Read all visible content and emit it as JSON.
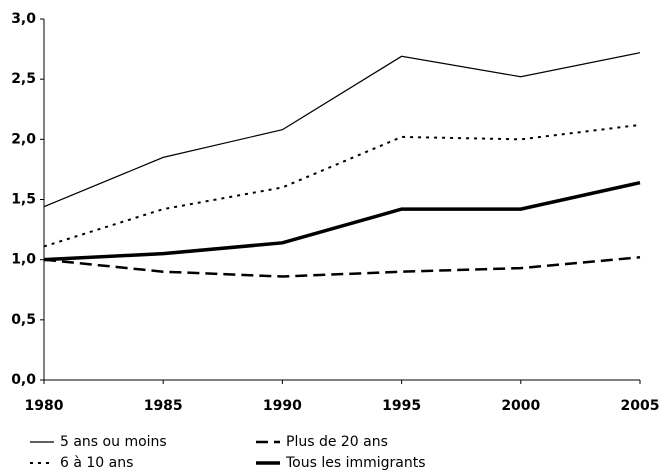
{
  "chart_data": {
    "type": "line",
    "x": [
      1980,
      1985,
      1990,
      1995,
      2000,
      2005
    ],
    "xlim": [
      1980,
      2005
    ],
    "xticks": [
      1980,
      1985,
      1990,
      1995,
      2000,
      2005
    ],
    "ylim": [
      0,
      3
    ],
    "yticks": [
      {
        "value": 0,
        "label": "0,0"
      },
      {
        "value": 0.5,
        "label": "0,5"
      },
      {
        "value": 1,
        "label": "1,0"
      },
      {
        "value": 1.5,
        "label": "1,5"
      },
      {
        "value": 2,
        "label": "2,0"
      },
      {
        "value": 2.5,
        "label": "2,5"
      },
      {
        "value": 3,
        "label": "3,0"
      }
    ],
    "grid": false,
    "legend": "bottom",
    "series": [
      {
        "name": "5 ans ou moins",
        "color": "#000000",
        "style": "solid",
        "width": 1.2,
        "values": [
          1.44,
          1.85,
          2.08,
          2.69,
          2.52,
          2.72
        ]
      },
      {
        "name": "6 à 10 ans",
        "color": "#000000",
        "style": "dotted",
        "width": 2,
        "values": [
          1.11,
          1.42,
          1.6,
          2.02,
          2.0,
          2.12
        ]
      },
      {
        "name": "Plus de 20 ans",
        "color": "#000000",
        "style": "dashed",
        "width": 2.5,
        "values": [
          1.0,
          0.9,
          0.86,
          0.9,
          0.93,
          1.02
        ]
      },
      {
        "name": "Tous les immigrants",
        "color": "#000000",
        "style": "solid",
        "width": 3.5,
        "values": [
          1.0,
          1.05,
          1.14,
          1.42,
          1.42,
          1.64
        ]
      }
    ]
  }
}
